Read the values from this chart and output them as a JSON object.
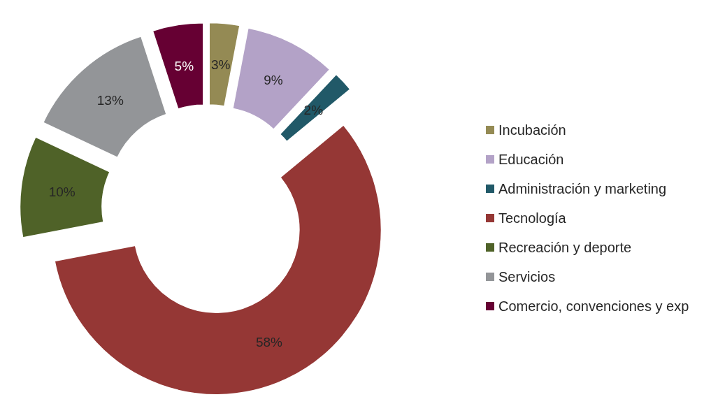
{
  "chart_data": {
    "type": "donut",
    "categories": [
      "Incubación",
      "Educación",
      "Administración y marketing",
      "Tecnología",
      "Recreación y deporte",
      "Servicios",
      "Comercio, convenciones y exp"
    ],
    "values": [
      3,
      9,
      2,
      58,
      10,
      13,
      5
    ],
    "value_labels": [
      "3%",
      "9%",
      "2%",
      "58%",
      "10%",
      "13%",
      "5%"
    ],
    "colors": [
      "#948a54",
      "#b3a2c7",
      "#215968",
      "#953735",
      "#4f6228",
      "#939598",
      "#660033"
    ],
    "legend": "right"
  }
}
